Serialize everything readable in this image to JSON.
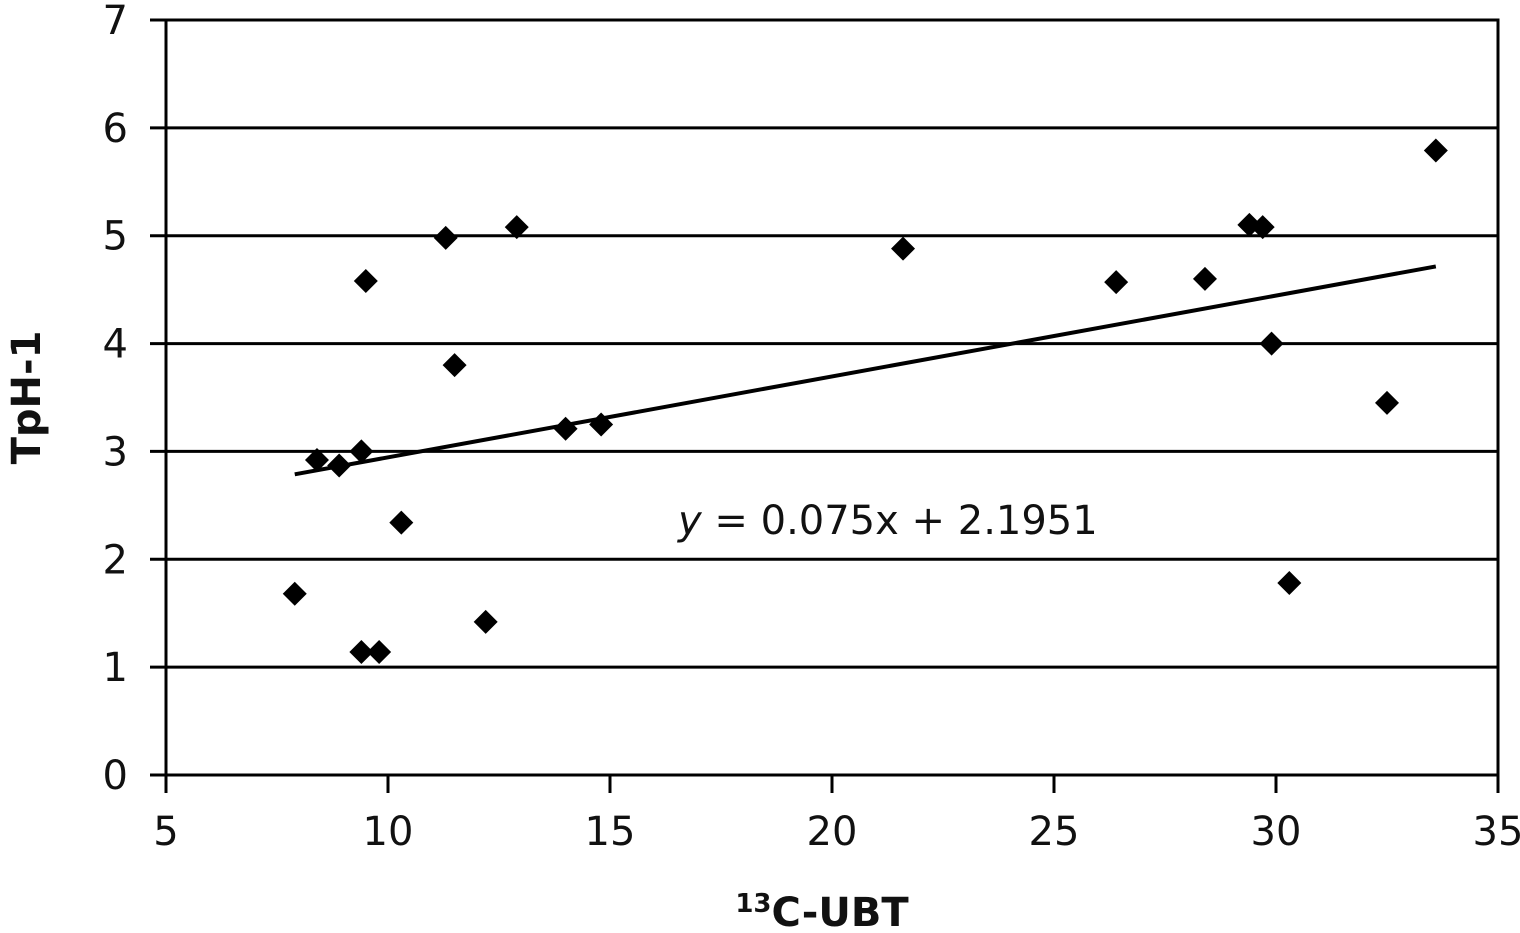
{
  "chart_data": {
    "type": "scatter",
    "xlabel": {
      "superscript": "13",
      "text": "C-UBT"
    },
    "ylabel": "TpH-1",
    "xlim": [
      5,
      35
    ],
    "ylim": [
      0,
      7
    ],
    "xticks": [
      5,
      10,
      15,
      20,
      25,
      30,
      35
    ],
    "yticks": [
      0,
      1,
      2,
      3,
      4,
      5,
      6,
      7
    ],
    "grid": "horizontal",
    "marker": "diamond",
    "colors": {
      "marker": "#000000",
      "grid": "#000000",
      "trendline": "#000000"
    },
    "points": [
      {
        "x": 7.9,
        "y": 1.68
      },
      {
        "x": 8.4,
        "y": 2.92
      },
      {
        "x": 8.9,
        "y": 2.87
      },
      {
        "x": 9.4,
        "y": 3.0
      },
      {
        "x": 9.4,
        "y": 1.14
      },
      {
        "x": 9.5,
        "y": 4.58
      },
      {
        "x": 9.8,
        "y": 1.14
      },
      {
        "x": 10.3,
        "y": 2.34
      },
      {
        "x": 11.3,
        "y": 4.98
      },
      {
        "x": 11.5,
        "y": 3.8
      },
      {
        "x": 12.2,
        "y": 1.42
      },
      {
        "x": 12.9,
        "y": 5.08
      },
      {
        "x": 14.0,
        "y": 3.21
      },
      {
        "x": 14.8,
        "y": 3.25
      },
      {
        "x": 21.6,
        "y": 4.88
      },
      {
        "x": 26.4,
        "y": 4.57
      },
      {
        "x": 28.4,
        "y": 4.6
      },
      {
        "x": 29.4,
        "y": 5.1
      },
      {
        "x": 29.7,
        "y": 5.08
      },
      {
        "x": 29.9,
        "y": 4.0
      },
      {
        "x": 30.3,
        "y": 1.78
      },
      {
        "x": 32.5,
        "y": 3.45
      },
      {
        "x": 33.6,
        "y": 5.79
      }
    ],
    "trendline": {
      "slope": 0.075,
      "intercept": 2.1951,
      "x_start": 7.9,
      "x_end": 33.6,
      "equation": {
        "var": "y",
        "rest": " = 0.075x + 2.1951"
      }
    }
  }
}
